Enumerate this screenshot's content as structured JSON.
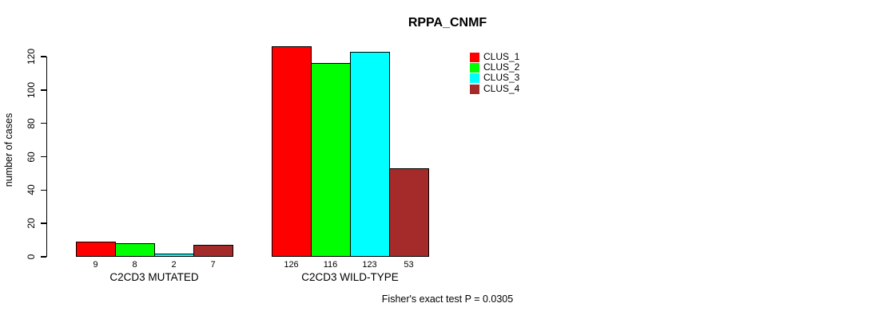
{
  "title": "RPPA_CNMF",
  "footer": "Fisher's exact test P = 0.0305",
  "chart_data": {
    "type": "bar",
    "title": "RPPA_CNMF",
    "xlabel": "",
    "ylabel": "number of cases",
    "categories": [
      "C2CD3 MUTATED",
      "C2CD3 WILD-TYPE"
    ],
    "series": [
      {
        "name": "CLUS_1",
        "color": "#ff0000",
        "values": [
          9,
          126
        ]
      },
      {
        "name": "CLUS_2",
        "color": "#00ff00",
        "values": [
          8,
          116
        ]
      },
      {
        "name": "CLUS_3",
        "color": "#00ffff",
        "values": [
          2,
          123
        ]
      },
      {
        "name": "CLUS_4",
        "color": "#a52a2a",
        "values": [
          7,
          53
        ]
      }
    ],
    "bar_value_labels": [
      [
        "9",
        "8",
        "2",
        "7"
      ],
      [
        "126",
        "116",
        "123",
        "53"
      ]
    ],
    "ylim": [
      0,
      120
    ],
    "yticks": [
      0,
      20,
      40,
      60,
      80,
      100,
      120
    ],
    "grid": false,
    "legend_position": "top-right",
    "annotation": "Fisher's exact test P = 0.0305",
    "axis_color": "#000000",
    "bar_border_color": "#000000"
  }
}
